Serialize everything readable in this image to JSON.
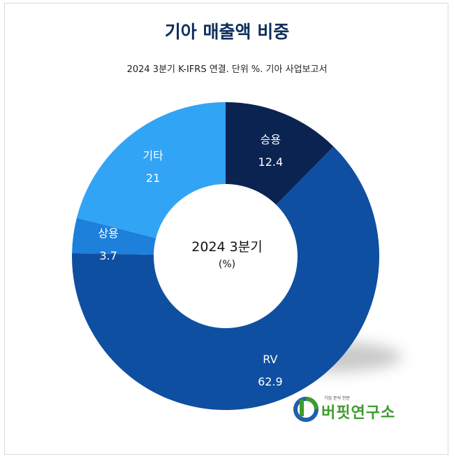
{
  "title": "기아 매출액 비중",
  "subtitle": "2024 3분기 K-IFRS 연결. 단위 %. 기아 사업보고서",
  "center": {
    "line1": "2024 3분기",
    "line2": "(%)"
  },
  "logo": {
    "tagline": "기업 분석 전문",
    "name": "버핏연구소"
  },
  "chart_data": {
    "type": "pie",
    "donut": true,
    "title": "기아 매출액 비중",
    "subtitle": "2024 3분기 K-IFRS 연결. 단위 %. 기아 사업보고서",
    "unit": "%",
    "slices": [
      {
        "label": "승용",
        "value": 12.4,
        "color": "#0b2350"
      },
      {
        "label": "RV",
        "value": 62.9,
        "color": "#0f4fa1"
      },
      {
        "label": "상용",
        "value": 3.7,
        "color": "#1d80db"
      },
      {
        "label": "기타",
        "value": 21,
        "color": "#32a4f5"
      }
    ]
  }
}
